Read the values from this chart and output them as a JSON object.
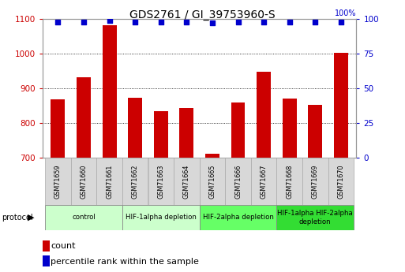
{
  "title": "GDS2761 / GI_39753960-S",
  "samples": [
    "GSM71659",
    "GSM71660",
    "GSM71661",
    "GSM71662",
    "GSM71663",
    "GSM71664",
    "GSM71665",
    "GSM71666",
    "GSM71667",
    "GSM71668",
    "GSM71669",
    "GSM71670"
  ],
  "counts": [
    868,
    933,
    1083,
    872,
    835,
    843,
    712,
    860,
    947,
    870,
    852,
    1002
  ],
  "percentile_ranks": [
    98,
    98,
    99,
    98,
    98,
    98,
    97,
    98,
    98,
    98,
    98,
    98
  ],
  "ylim_left": [
    700,
    1100
  ],
  "ylim_right": [
    0,
    100
  ],
  "yticks_left": [
    700,
    800,
    900,
    1000,
    1100
  ],
  "yticks_right": [
    0,
    25,
    50,
    75,
    100
  ],
  "bar_color": "#cc0000",
  "dot_color": "#0000cc",
  "groups": [
    {
      "label": "control",
      "indices": [
        0,
        1,
        2
      ],
      "color": "#ccffcc"
    },
    {
      "label": "HIF-1alpha depletion",
      "indices": [
        3,
        4,
        5
      ],
      "color": "#ccffcc"
    },
    {
      "label": "HIF-2alpha depletion",
      "indices": [
        6,
        7,
        8
      ],
      "color": "#66ff66"
    },
    {
      "label": "HIF-1alpha HIF-2alpha\ndepletion",
      "indices": [
        9,
        10,
        11
      ],
      "color": "#33dd33"
    }
  ],
  "legend_count_color": "#cc0000",
  "legend_pct_color": "#0000cc"
}
